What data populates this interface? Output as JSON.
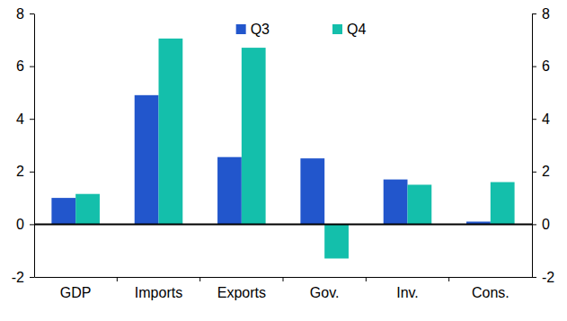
{
  "chart_data": {
    "type": "bar",
    "categories": [
      "GDP",
      "Imports",
      "Exports",
      "Gov.",
      "Inv.",
      "Cons."
    ],
    "series": [
      {
        "name": "Q3",
        "color": "#2256cc",
        "values": [
          1.0,
          4.9,
          2.55,
          2.5,
          1.7,
          0.1
        ]
      },
      {
        "name": "Q4",
        "color": "#14bfab",
        "values": [
          1.15,
          7.05,
          6.7,
          -1.3,
          1.5,
          1.6
        ]
      }
    ],
    "ylim": [
      -2,
      8
    ],
    "yticks": [
      -2,
      0,
      2,
      4,
      6,
      8
    ],
    "y2lim": [
      -2,
      8
    ],
    "y2ticks": [
      -2,
      0,
      2,
      4,
      6,
      8
    ],
    "grid": false,
    "legend": "top"
  }
}
